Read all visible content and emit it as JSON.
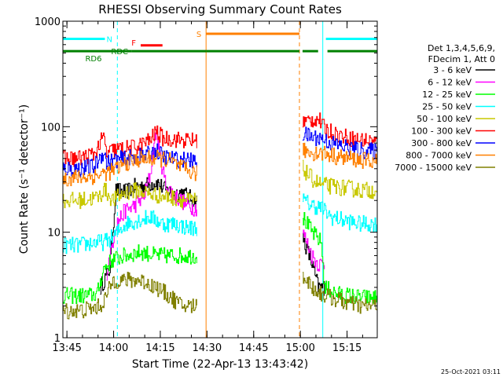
{
  "chart_data": {
    "type": "line",
    "title": "RHESSI Observing Summary Count Rates",
    "xlabel": "Start Time (22-Apr-13 13:43:42)",
    "ylabel": "Count Rate (s⁻¹ detector⁻¹)",
    "y_scale": "log",
    "ylim": [
      1,
      1000
    ],
    "xlim_minutes": [
      0,
      101
    ],
    "y_ticks": [
      {
        "value": 1,
        "label": "1"
      },
      {
        "value": 10,
        "label": "10"
      },
      {
        "value": 100,
        "label": "100"
      },
      {
        "value": 1000,
        "label": "1000"
      }
    ],
    "x_ticks": [
      {
        "minute": 1.3,
        "label": "13:45"
      },
      {
        "minute": 16.3,
        "label": "14:00"
      },
      {
        "minute": 31.3,
        "label": "14:15"
      },
      {
        "minute": 46.3,
        "label": "14:30"
      },
      {
        "minute": 61.3,
        "label": "14:45"
      },
      {
        "minute": 76.3,
        "label": "15:00"
      },
      {
        "minute": 91.3,
        "label": "15:15"
      }
    ],
    "timestamp": "25-Oct-2021 03:11",
    "legend": {
      "header": [
        "Det 1,3,4,5,6,9,",
        "FDecim 1, Att 0"
      ],
      "position": "right"
    },
    "series": [
      {
        "name": "3 - 6 keV",
        "color": "#000000",
        "gaps": [
          [
            43,
            77
          ],
          [
            84,
            101
          ]
        ],
        "points": [
          [
            12,
            3.0
          ],
          [
            15,
            4.5
          ],
          [
            17,
            25
          ],
          [
            20,
            24
          ],
          [
            23,
            27
          ],
          [
            27,
            28
          ],
          [
            30,
            30
          ],
          [
            33,
            25
          ],
          [
            36,
            23
          ],
          [
            38,
            24
          ],
          [
            40,
            22
          ],
          [
            42,
            20
          ],
          [
            43,
            20
          ],
          [
            77,
            9
          ],
          [
            80,
            5
          ],
          [
            82,
            3
          ],
          [
            84,
            3
          ]
        ]
      },
      {
        "name": "6 - 12 keV",
        "color": "#ff00ff",
        "gaps": [
          [
            43,
            77
          ],
          [
            84,
            101
          ]
        ],
        "points": [
          [
            14,
            4
          ],
          [
            17,
            12
          ],
          [
            20,
            16
          ],
          [
            23,
            18
          ],
          [
            26,
            22
          ],
          [
            28,
            35
          ],
          [
            29,
            60
          ],
          [
            30,
            95
          ],
          [
            31,
            55
          ],
          [
            33,
            28
          ],
          [
            36,
            22
          ],
          [
            38,
            20
          ],
          [
            40,
            18
          ],
          [
            42,
            17
          ],
          [
            43,
            17
          ],
          [
            77,
            10
          ],
          [
            80,
            6
          ],
          [
            82,
            5
          ],
          [
            84,
            5
          ]
        ]
      },
      {
        "name": "12 - 25 keV",
        "color": "#00ff00",
        "gaps": [
          [
            43,
            77
          ]
        ],
        "points": [
          [
            0,
            2.5
          ],
          [
            8,
            2.5
          ],
          [
            11,
            2.6
          ],
          [
            13,
            4.5
          ],
          [
            16,
            5.5
          ],
          [
            20,
            6
          ],
          [
            25,
            6.5
          ],
          [
            30,
            6
          ],
          [
            35,
            6
          ],
          [
            40,
            6
          ],
          [
            43,
            6
          ],
          [
            77,
            14
          ],
          [
            80,
            10
          ],
          [
            83,
            8
          ],
          [
            84,
            3
          ],
          [
            88,
            2.6
          ],
          [
            92,
            2.5
          ],
          [
            96,
            2.4
          ],
          [
            101,
            2.4
          ]
        ]
      },
      {
        "name": "25 - 50 keV",
        "color": "#00ffff",
        "gaps": [
          [
            43,
            77
          ]
        ],
        "points": [
          [
            0,
            7.5
          ],
          [
            5,
            7.5
          ],
          [
            10,
            8
          ],
          [
            13,
            8
          ],
          [
            16,
            9
          ],
          [
            20,
            12
          ],
          [
            24,
            13
          ],
          [
            28,
            14
          ],
          [
            32,
            12
          ],
          [
            36,
            12
          ],
          [
            40,
            11
          ],
          [
            43,
            11
          ],
          [
            77,
            20
          ],
          [
            80,
            18
          ],
          [
            83,
            17
          ],
          [
            86,
            14
          ],
          [
            90,
            13
          ],
          [
            95,
            12
          ],
          [
            101,
            12
          ]
        ]
      },
      {
        "name": "50 - 100 keV",
        "color": "#c8c800",
        "gaps": [
          [
            43,
            77
          ]
        ],
        "points": [
          [
            0,
            20
          ],
          [
            5,
            20
          ],
          [
            10,
            21
          ],
          [
            12,
            22
          ],
          [
            13,
            26
          ],
          [
            16,
            20
          ],
          [
            20,
            24
          ],
          [
            24,
            25
          ],
          [
            28,
            23
          ],
          [
            32,
            22
          ],
          [
            36,
            21
          ],
          [
            40,
            20
          ],
          [
            43,
            20
          ],
          [
            77,
            40
          ],
          [
            80,
            32
          ],
          [
            83,
            28
          ],
          [
            87,
            27
          ],
          [
            92,
            26
          ],
          [
            96,
            25
          ],
          [
            101,
            25
          ]
        ]
      },
      {
        "name": "100 - 300 keV",
        "color": "#ff0000",
        "gaps": [
          [
            43,
            77
          ]
        ],
        "points": [
          [
            0,
            50
          ],
          [
            5,
            50
          ],
          [
            10,
            55
          ],
          [
            13,
            80
          ],
          [
            14,
            55
          ],
          [
            16,
            60
          ],
          [
            20,
            62
          ],
          [
            24,
            65
          ],
          [
            28,
            75
          ],
          [
            30,
            90
          ],
          [
            32,
            78
          ],
          [
            36,
            76
          ],
          [
            40,
            74
          ],
          [
            43,
            74
          ],
          [
            77,
            110
          ],
          [
            82,
            120
          ],
          [
            84,
            95
          ],
          [
            88,
            85
          ],
          [
            92,
            78
          ],
          [
            96,
            75
          ],
          [
            101,
            72
          ]
        ]
      },
      {
        "name": "300 - 800 keV",
        "color": "#0000ff",
        "gaps": [
          [
            43,
            77
          ]
        ],
        "points": [
          [
            0,
            40
          ],
          [
            5,
            40
          ],
          [
            10,
            42
          ],
          [
            13,
            58
          ],
          [
            14,
            45
          ],
          [
            16,
            48
          ],
          [
            20,
            50
          ],
          [
            24,
            52
          ],
          [
            28,
            55
          ],
          [
            30,
            60
          ],
          [
            32,
            52
          ],
          [
            36,
            49
          ],
          [
            40,
            48
          ],
          [
            43,
            46
          ],
          [
            77,
            85
          ],
          [
            80,
            80
          ],
          [
            83,
            78
          ],
          [
            86,
            70
          ],
          [
            90,
            65
          ],
          [
            95,
            60
          ],
          [
            101,
            58
          ]
        ]
      },
      {
        "name": "800 - 7000 keV",
        "color": "#ff8000",
        "gaps": [
          [
            43,
            77
          ]
        ],
        "points": [
          [
            0,
            32
          ],
          [
            5,
            33
          ],
          [
            10,
            34
          ],
          [
            13,
            36
          ],
          [
            16,
            38
          ],
          [
            20,
            45
          ],
          [
            24,
            49
          ],
          [
            28,
            50
          ],
          [
            31,
            50
          ],
          [
            34,
            48
          ],
          [
            37,
            42
          ],
          [
            40,
            38
          ],
          [
            43,
            36
          ],
          [
            77,
            60
          ],
          [
            80,
            57
          ],
          [
            84,
            56
          ],
          [
            88,
            52
          ],
          [
            92,
            50
          ],
          [
            96,
            48
          ],
          [
            101,
            47
          ]
        ]
      },
      {
        "name": "7000 - 15000 keV",
        "color": "#808000",
        "gaps": [
          [
            43,
            77
          ]
        ],
        "points": [
          [
            0,
            1.8
          ],
          [
            5,
            1.8
          ],
          [
            10,
            1.9
          ],
          [
            12,
            2.0
          ],
          [
            14,
            2.5
          ],
          [
            16,
            3.5
          ],
          [
            20,
            3.5
          ],
          [
            25,
            3.5
          ],
          [
            30,
            3.0
          ],
          [
            34,
            2.5
          ],
          [
            38,
            2.0
          ],
          [
            42,
            2.0
          ],
          [
            43,
            2.0
          ],
          [
            77,
            4
          ],
          [
            80,
            3
          ],
          [
            83,
            2.6
          ],
          [
            86,
            2.4
          ],
          [
            90,
            2.2
          ],
          [
            95,
            2.0
          ],
          [
            101,
            2.0
          ]
        ]
      }
    ],
    "flags": [
      {
        "label": "N",
        "color": "#00ffff",
        "y": 680,
        "segments": [
          [
            0,
            13.5
          ],
          [
            84.5,
            101
          ]
        ]
      },
      {
        "label": "F",
        "color": "#ff0000",
        "y": 590,
        "segments": [
          [
            25,
            32
          ]
        ]
      },
      {
        "label": "S",
        "color": "#ff8000",
        "y": 760,
        "segments": [
          [
            46,
            76
          ]
        ]
      },
      {
        "label": "RDC",
        "color": "#008000",
        "y": 520,
        "segments": [
          [
            0,
            22
          ]
        ]
      },
      {
        "label": "RD6",
        "color": "#008000",
        "y": 520,
        "segments": [
          [
            22,
            46
          ],
          [
            46,
            76
          ],
          [
            77,
            82
          ],
          [
            85,
            101
          ]
        ]
      }
    ],
    "vlines": [
      {
        "minute": 0,
        "color": "#00ffff",
        "style": "solid"
      },
      {
        "minute": 17.5,
        "color": "#00ffff",
        "style": "dashed"
      },
      {
        "minute": 46,
        "color": "#ff8000",
        "style": "solid"
      },
      {
        "minute": 76,
        "color": "#ff8000",
        "style": "dashed"
      },
      {
        "minute": 83.5,
        "color": "#00ffff",
        "style": "solid"
      },
      {
        "minute": 101,
        "color": "#00ffff",
        "style": "dashed"
      }
    ],
    "grid": false
  }
}
